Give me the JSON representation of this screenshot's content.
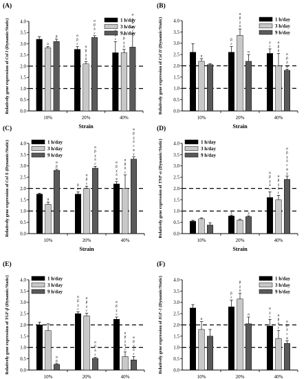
{
  "colors": {
    "series": [
      "#000000",
      "#c8c8c8",
      "#5a5a5a"
    ],
    "axis": "#000000",
    "reference_line": "#000000"
  },
  "chart_data": [
    {
      "type": "bar",
      "panel": "(A)",
      "categories": [
        "10%",
        "20%",
        "40%"
      ],
      "xlabel": "Strain",
      "ylabel_prefix": "Relatively gene expression of ",
      "ylabel_gene": "Col I",
      "ylabel_suffix": " (Dynamic/Static)",
      "ylim": [
        0,
        4
      ],
      "yticks": [
        "0.0",
        "0.5",
        "1.0",
        "1.5",
        "2.0",
        "2.5",
        "3.0",
        "3.5",
        "4.0"
      ],
      "reference_lines": [
        1,
        2
      ],
      "legend_position": "top-right",
      "series": [
        {
          "name": "1 h/day",
          "values": [
            3.2,
            2.75,
            2.6
          ],
          "errors": [
            0.12,
            0.12,
            0.5
          ]
        },
        {
          "name": "3 h/day",
          "values": [
            2.82,
            2.1,
            2.6
          ],
          "errors": [
            0.06,
            0.1,
            0.15
          ]
        },
        {
          "name": "9 h/day",
          "values": [
            3.1,
            3.28,
            2.85
          ],
          "errors": [
            0.1,
            0.08,
            0.6
          ]
        }
      ],
      "annotations": [
        [
          [],
          [
            "α"
          ],
          [
            "β"
          ]
        ],
        [
          [
            "α",
            "β",
            "ε"
          ],
          [
            "α",
            "β",
            "χ",
            "δ"
          ],
          [
            "α",
            "β",
            "δ",
            "ε"
          ]
        ],
        [
          [
            "α",
            "χ",
            "ε"
          ],
          [
            "α",
            "β",
            "χ",
            "δ"
          ],
          [
            "α",
            "χ",
            "δ",
            "φ",
            "ε"
          ]
        ]
      ]
    },
    {
      "type": "bar",
      "panel": "(B)",
      "categories": [
        "10%",
        "20%",
        "40%"
      ],
      "xlabel": "Strain",
      "ylabel_prefix": "Relatively gene expression of ",
      "ylabel_gene": "Col II",
      "ylabel_suffix": " (Dynamic/Static)",
      "ylim": [
        0,
        4
      ],
      "yticks": [
        "0.0",
        "0.5",
        "1.0",
        "1.5",
        "2.0",
        "2.5",
        "3.0",
        "3.5",
        "4.0"
      ],
      "reference_lines": [
        1,
        2
      ],
      "legend_position": "top-right",
      "series": [
        {
          "name": "1 h/day",
          "values": [
            2.6,
            2.6,
            2.55
          ],
          "errors": [
            0.38,
            0.25,
            0.2
          ]
        },
        {
          "name": "3 h/day",
          "values": [
            2.2,
            3.35,
            2.0
          ],
          "errors": [
            0.12,
            0.28,
            0.55
          ]
        },
        {
          "name": "9 h/day",
          "values": [
            2.05,
            2.2,
            1.8
          ],
          "errors": [
            0.04,
            0.3,
            0.05
          ]
        }
      ],
      "annotations": [
        [
          [],
          [
            "α"
          ],
          []
        ],
        [
          [
            "β",
            "ε"
          ],
          [
            "α",
            "β",
            "χ",
            "δ"
          ],
          [
            "α"
          ]
        ],
        [
          [
            "χ",
            "ε"
          ],
          [
            "α",
            "β",
            "δ"
          ],
          [
            "α",
            "β",
            "δ",
            "φ"
          ]
        ]
      ]
    },
    {
      "type": "bar",
      "panel": "(C)",
      "categories": [
        "10%",
        "20%",
        "40%"
      ],
      "xlabel": "Strain",
      "ylabel_prefix": "Relatively gene expression of ",
      "ylabel_gene": "Col X",
      "ylabel_suffix": " (Dynamic/Static)",
      "ylim": [
        0,
        4
      ],
      "yticks": [
        "0.0",
        "0.5",
        "1.0",
        "1.5",
        "2.0",
        "2.5",
        "3.0",
        "3.5",
        "4.0"
      ],
      "reference_lines": [
        1,
        2
      ],
      "legend_position": "top-left",
      "series": [
        {
          "name": "1 h/day",
          "values": [
            1.75,
            1.75,
            2.2
          ],
          "errors": [
            0.04,
            0.1,
            0.1
          ]
        },
        {
          "name": "3 h/day",
          "values": [
            1.3,
            2.0,
            2.0
          ],
          "errors": [
            0.1,
            0.1,
            0.6
          ]
        },
        {
          "name": "9 h/day",
          "values": [
            2.8,
            2.9,
            3.3
          ],
          "errors": [
            0.05,
            0.08,
            0.1
          ]
        }
      ],
      "annotations": [
        [
          [],
          [
            "α"
          ],
          [
            "α",
            "β"
          ]
        ],
        [
          [
            "β",
            "ε"
          ],
          [
            "α",
            "β",
            "ε"
          ],
          [
            "α",
            "β",
            "χ",
            "δ",
            "ε"
          ]
        ],
        [
          [
            "α",
            "β",
            "χ",
            "δ",
            "φ"
          ],
          [
            "α",
            "β",
            "δ",
            "ε"
          ],
          [
            "α",
            "β",
            "χ",
            "δ",
            "ε",
            "φ",
            "γ"
          ]
        ]
      ]
    },
    {
      "type": "bar",
      "panel": "(D)",
      "categories": [
        "10%",
        "20%",
        "40%"
      ],
      "xlabel": "Strain",
      "ylabel_prefix": "Relatively gene expression of ",
      "ylabel_gene": "TNF-α",
      "ylabel_suffix": " (Dynamic/Static)",
      "ylim": [
        0,
        4
      ],
      "yticks": [
        "0.0",
        "0.5",
        "1.0",
        "1.5",
        "2.0",
        "2.5",
        "3.0",
        "3.5",
        "4.0"
      ],
      "reference_lines": [
        1,
        2
      ],
      "legend_position": "top-left",
      "series": [
        {
          "name": "1 h/day",
          "values": [
            0.55,
            0.78,
            1.6
          ],
          "errors": [
            0.04,
            0.04,
            0.25
          ]
        },
        {
          "name": "3 h/day",
          "values": [
            0.65,
            0.6,
            1.5
          ],
          "errors": [
            0.05,
            0.04,
            0.2
          ]
        },
        {
          "name": "9 h/day",
          "values": [
            0.38,
            0.75,
            2.4
          ],
          "errors": [
            0.1,
            0.04,
            0.15
          ]
        }
      ],
      "annotations": [
        [
          [],
          [],
          []
        ],
        [
          [
            "χ"
          ],
          [],
          [
            "χ"
          ]
        ],
        [
          [
            "α",
            "β",
            "χ",
            "δ",
            "ε"
          ],
          [
            "α",
            "β",
            "χ",
            "δ",
            "ε"
          ],
          [
            "α",
            "β",
            "χ",
            "δ",
            "ε",
            "φ",
            "γ"
          ]
        ]
      ]
    },
    {
      "type": "bar",
      "panel": "(E)",
      "categories": [
        "10%",
        "20%",
        "40%"
      ],
      "xlabel": "Strain",
      "ylabel_prefix": "Relatively gene expression of ",
      "ylabel_gene": "TGF-β",
      "ylabel_suffix": " (Dynamic/Static)",
      "ylim": [
        0,
        4
      ],
      "yticks": [
        "0.0",
        "0.5",
        "1.0",
        "1.5",
        "2.0",
        "2.5",
        "3.0",
        "3.5",
        "4.0"
      ],
      "reference_lines": [
        1,
        2
      ],
      "legend_position": "top-left",
      "series": [
        {
          "name": "1 h/day",
          "values": [
            2.0,
            2.5,
            2.25
          ],
          "errors": [
            0.12,
            0.08,
            0.1
          ]
        },
        {
          "name": "3 h/day",
          "values": [
            1.75,
            2.4,
            0.6
          ],
          "errors": [
            0.3,
            0.12,
            0.2
          ]
        },
        {
          "name": "9 h/day",
          "values": [
            0.25,
            0.52,
            0.45
          ],
          "errors": [
            0.03,
            0.04,
            0.15
          ]
        }
      ],
      "annotations": [
        [
          [],
          [],
          [
            "α",
            "β"
          ]
        ],
        [
          [
            "α",
            "β",
            "χ",
            "ε"
          ],
          [
            "α",
            "β",
            "χ",
            "ε"
          ],
          [
            "α",
            "β",
            "δ",
            "ε"
          ]
        ],
        [
          [
            "α",
            "β",
            "χ",
            "ε"
          ],
          [
            "α",
            "β",
            "χ",
            "δ",
            "ε"
          ],
          [
            "α",
            "β",
            "χ",
            "δ",
            "ε"
          ]
        ]
      ]
    },
    {
      "type": "bar",
      "panel": "(F)",
      "categories": [
        "10%",
        "20%",
        "40%"
      ],
      "xlabel": "Strain",
      "ylabel_prefix": "Relatively gene expression of ",
      "ylabel_gene": "IGF-1",
      "ylabel_suffix": " (Dynamic/Static)",
      "ylim": [
        0,
        4
      ],
      "yticks": [
        "0.0",
        "0.5",
        "1.0",
        "1.5",
        "2.0",
        "2.5",
        "3.0",
        "3.5",
        "4.0"
      ],
      "reference_lines": [
        1,
        2
      ],
      "legend_position": "top-right",
      "series": [
        {
          "name": "1 h/day",
          "values": [
            2.75,
            2.8,
            1.95
          ],
          "errors": [
            0.15,
            0.3,
            0.3
          ]
        },
        {
          "name": "3 h/day",
          "values": [
            1.8,
            3.15,
            1.4
          ],
          "errors": [
            0.35,
            0.25,
            0.35
          ]
        },
        {
          "name": "9 h/day",
          "values": [
            1.5,
            2.05,
            1.18
          ],
          "errors": [
            0.3,
            0.3,
            0.12
          ]
        }
      ],
      "annotations": [
        [
          [],
          [
            "α"
          ],
          []
        ],
        [
          [
            "β",
            "ε"
          ],
          [
            "β",
            "χ",
            "δ"
          ],
          [
            "α"
          ]
        ],
        [
          [
            "α",
            "χ",
            "ε"
          ],
          [
            "α",
            "β",
            "δ",
            "ε"
          ],
          [
            "α",
            "β",
            "δ",
            "ε",
            "φ"
          ]
        ]
      ]
    }
  ]
}
